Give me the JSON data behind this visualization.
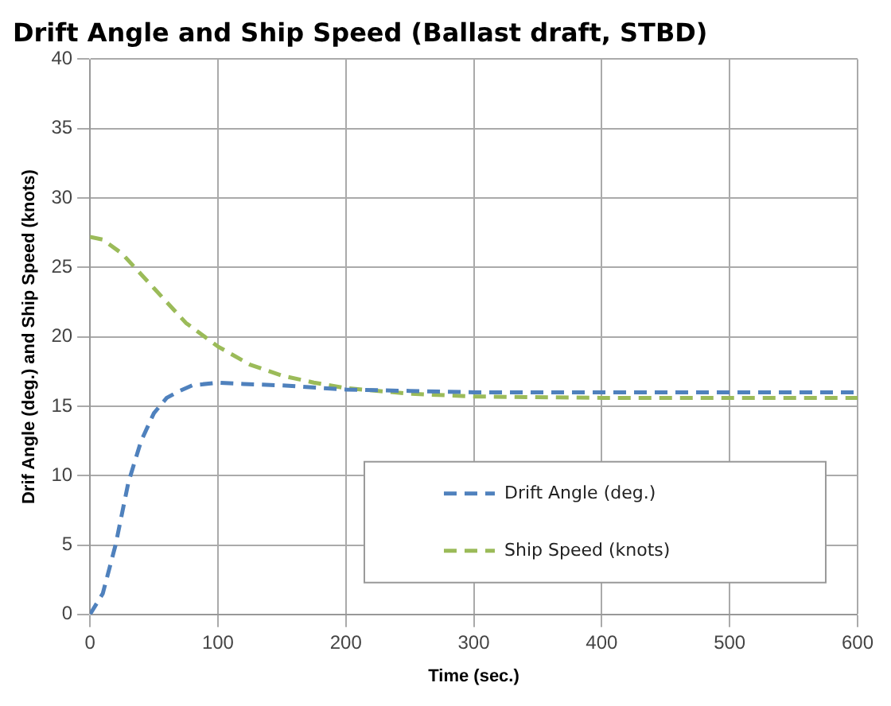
{
  "chart_data": {
    "type": "line",
    "title": "Drift Angle and Ship Speed (Ballast draft, STBD)",
    "xlabel": "Time (sec.)",
    "ylabel": "Drif Angle (deg.) and Ship Speed (knots)",
    "xlim": [
      0,
      600
    ],
    "xticks": [
      0,
      100,
      200,
      300,
      400,
      500,
      600
    ],
    "ylim": [
      0,
      40
    ],
    "yticks": [
      0,
      5,
      10,
      15,
      20,
      25,
      30,
      35,
      40
    ],
    "grid": true,
    "legend": "bottom right",
    "marker": "none",
    "series": [
      {
        "name": "Drift Angle (deg.)",
        "color": "#4f81bd",
        "line_style": "dashed",
        "x": [
          0,
          10,
          20,
          30,
          40,
          50,
          60,
          70,
          80,
          100,
          120,
          150,
          200,
          250,
          300,
          400,
          500,
          600
        ],
        "values": [
          0,
          1.5,
          5,
          9.5,
          12.5,
          14.5,
          15.6,
          16.1,
          16.5,
          16.7,
          16.6,
          16.5,
          16.2,
          16.1,
          16.0,
          16.0,
          16.0,
          16.0
        ]
      },
      {
        "name": "Ship Speed (knots)",
        "color": "#9bbb59",
        "line_style": "dashed",
        "x": [
          0,
          10,
          25,
          50,
          75,
          100,
          125,
          150,
          175,
          200,
          250,
          300,
          400,
          500,
          600
        ],
        "values": [
          27.2,
          27,
          26,
          23.5,
          21,
          19.3,
          18,
          17.2,
          16.7,
          16.3,
          15.9,
          15.7,
          15.6,
          15.6,
          15.6
        ]
      }
    ]
  }
}
